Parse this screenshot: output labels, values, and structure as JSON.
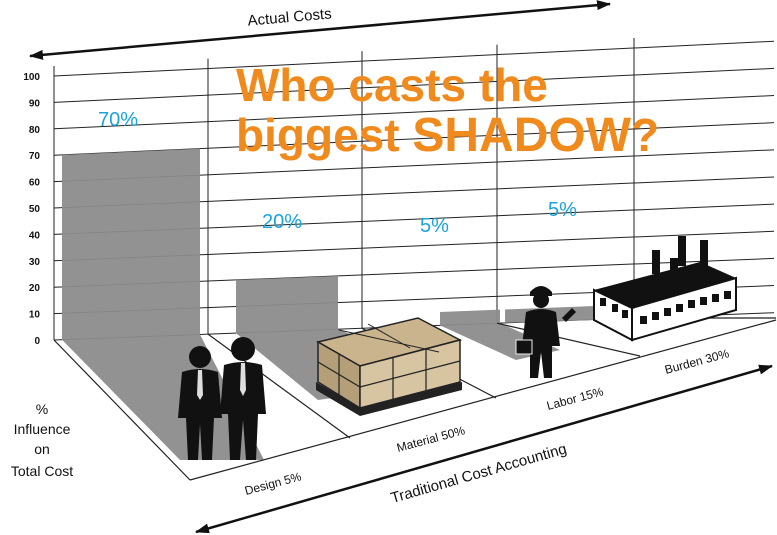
{
  "chart_data": {
    "type": "bar",
    "title_line1": "Who casts the",
    "title_line2_prefix": "biggest ",
    "title_line2_emph": "SHADOW",
    "title_line2_suffix": "?",
    "top_axis_label": "Actual Costs",
    "bottom_axis_label": "Traditional Cost Accounting",
    "ylabel_lines": [
      "%",
      "Influence",
      "on",
      "Total Cost"
    ],
    "ylim": [
      0,
      100
    ],
    "yticks": [
      0,
      10,
      20,
      30,
      40,
      50,
      60,
      70,
      80,
      90,
      100
    ],
    "grid": true,
    "categories": [
      "Design",
      "Material",
      "Labor",
      "Burden"
    ],
    "category_labels": [
      "Design 5%",
      "Material 50%",
      "Labor 15%",
      "Burden 30%"
    ],
    "traditional_cost_percent": [
      5,
      50,
      15,
      30
    ],
    "influence_percent": [
      70,
      20,
      5,
      5
    ],
    "influence_labels": [
      "70%",
      "20%",
      "5%",
      "5%"
    ],
    "icons": [
      "business-people-icon",
      "material-pallet-icon",
      "worker-icon",
      "factory-icon"
    ]
  },
  "colors": {
    "accent": "#f08a1c",
    "percent_text": "#1aa3dc",
    "shadow": "#8c8c8c",
    "grid": "#222222"
  }
}
